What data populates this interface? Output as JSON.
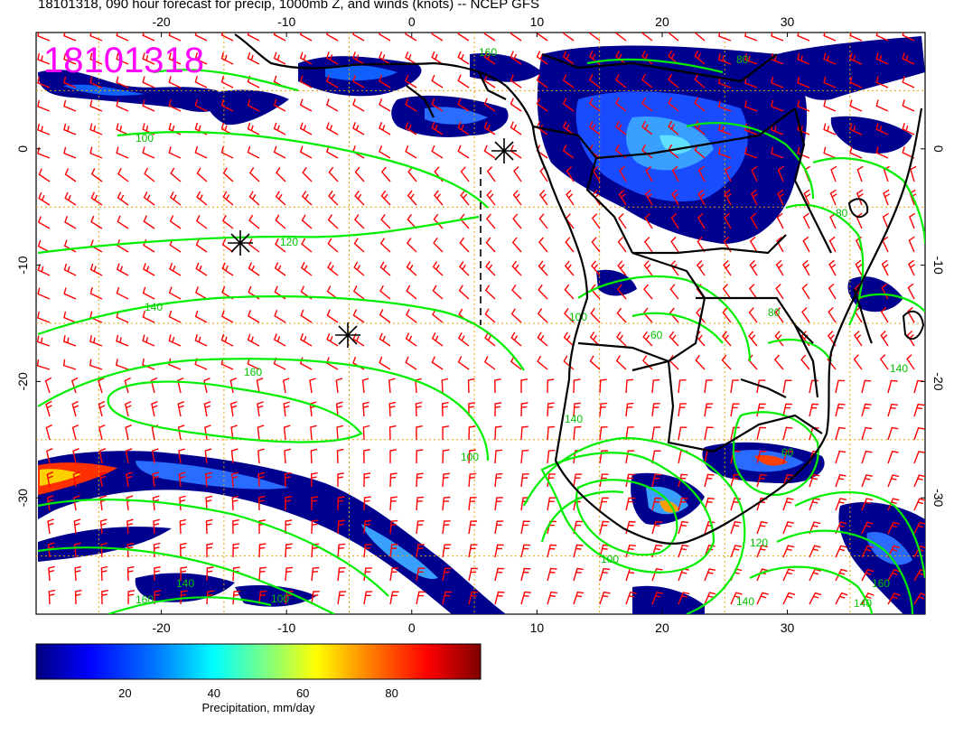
{
  "title": "18101318, 090 hour forecast for precip, 1000mb Z, and winds (knots) -- NCEP GFS",
  "stamp": "18101318",
  "x_ticks": [
    "-20",
    "-10",
    "0",
    "10",
    "20",
    "30"
  ],
  "x_tick_values": [
    -20,
    -10,
    0,
    10,
    20,
    30
  ],
  "y_ticks": [
    "0",
    "-10",
    "-20",
    "-30"
  ],
  "y_tick_values": [
    0,
    -10,
    -20,
    -30
  ],
  "lon_range": [
    -30,
    41
  ],
  "lat_range": [
    -40,
    10
  ],
  "colorbar": {
    "title": "Precipitation, mm/day",
    "labels": [
      "20",
      "40",
      "60",
      "80"
    ],
    "values": [
      20,
      40,
      60,
      80
    ],
    "range": [
      0,
      100
    ],
    "colors": [
      "#00007f",
      "#0000ff",
      "#0080ff",
      "#00ffff",
      "#80ff80",
      "#ffff00",
      "#ff8000",
      "#ff0000",
      "#7f0000"
    ]
  },
  "contour_labels": [
    "100",
    "120",
    "140",
    "160",
    "60",
    "80"
  ],
  "colors": {
    "wind_barbs": "#ff0000",
    "height_contours": "#00ff00",
    "coastlines": "#000000",
    "graticule": "#e8a000",
    "stamp": "#ff00ff"
  },
  "icons": [
    "low-pressure-asterisk-icon"
  ]
}
